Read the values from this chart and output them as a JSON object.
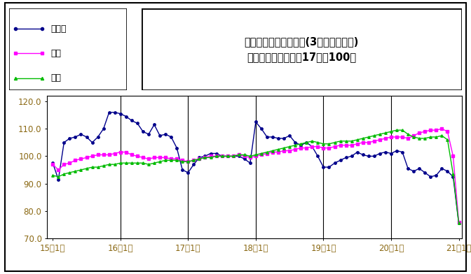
{
  "title_line1": "鉱工業生産指数の推移(3ヶ月移動平均)",
  "title_line2": "（季節調整済、平成17年＝100）",
  "legend_labels": [
    "鳥取県",
    "中国",
    "全国"
  ],
  "line_colors": [
    "#00008B",
    "#FF00FF",
    "#00BB00"
  ],
  "line_markers": [
    "o",
    "s",
    "^"
  ],
  "x_tick_labels": [
    "15年1月",
    "16年1月",
    "17年1月",
    "18年1月",
    "19年1月",
    "20年1月",
    "21年1月"
  ],
  "x_tick_positions": [
    0,
    12,
    24,
    36,
    48,
    60,
    72
  ],
  "vline_positions": [
    12,
    24,
    36,
    48,
    60
  ],
  "ylim": [
    70.0,
    122.0
  ],
  "yticks": [
    70.0,
    80.0,
    90.0,
    100.0,
    110.0,
    120.0
  ],
  "y_tick_labels": [
    "70.0",
    "80.0",
    "90.0",
    "100.0",
    "110.0",
    "120.0"
  ],
  "tottori": [
    97.5,
    91.5,
    105.0,
    106.5,
    107.0,
    108.0,
    107.0,
    105.0,
    107.0,
    110.0,
    116.0,
    116.0,
    115.5,
    114.5,
    113.0,
    112.0,
    109.0,
    108.0,
    111.5,
    107.5,
    108.0,
    107.0,
    103.0,
    95.0,
    94.0,
    97.0,
    99.5,
    100.0,
    101.0,
    101.0,
    100.0,
    100.0,
    100.0,
    100.0,
    99.0,
    97.5,
    112.5,
    110.0,
    107.0,
    107.0,
    106.5,
    106.5,
    107.5,
    105.0,
    104.0,
    105.0,
    103.5,
    100.0,
    96.0,
    96.0,
    97.5,
    98.5,
    99.5,
    100.0,
    101.5,
    100.5,
    100.0,
    100.0,
    101.0,
    101.5,
    101.0,
    102.0,
    101.5,
    95.5,
    94.5,
    95.5,
    94.0,
    92.5,
    93.0,
    95.5,
    94.5,
    92.5,
    75.5
  ],
  "chugoku": [
    97.0,
    95.0,
    97.0,
    97.5,
    98.5,
    99.0,
    99.5,
    100.0,
    100.5,
    100.5,
    100.5,
    101.0,
    101.5,
    101.5,
    100.5,
    100.0,
    99.5,
    99.0,
    99.5,
    99.5,
    99.5,
    99.0,
    99.0,
    98.5,
    98.0,
    98.5,
    99.0,
    99.5,
    100.0,
    100.0,
    100.0,
    100.0,
    100.0,
    100.5,
    100.0,
    99.5,
    100.0,
    100.5,
    101.0,
    101.5,
    101.5,
    102.0,
    102.0,
    102.5,
    103.0,
    103.0,
    103.5,
    103.5,
    103.0,
    103.0,
    103.5,
    104.0,
    104.0,
    104.0,
    104.5,
    105.0,
    105.0,
    105.5,
    106.0,
    106.5,
    107.0,
    107.0,
    107.0,
    106.5,
    107.5,
    108.5,
    109.0,
    109.5,
    109.5,
    110.0,
    109.0,
    100.0,
    76.0
  ],
  "zenkoku": [
    93.0,
    92.5,
    93.5,
    94.0,
    94.5,
    95.0,
    95.5,
    96.0,
    96.0,
    96.5,
    97.0,
    97.0,
    97.5,
    97.5,
    97.5,
    97.5,
    97.5,
    97.0,
    97.5,
    98.0,
    98.5,
    98.5,
    98.5,
    98.0,
    98.0,
    98.5,
    99.0,
    99.5,
    99.5,
    100.0,
    100.0,
    100.0,
    100.0,
    100.5,
    100.5,
    100.0,
    100.5,
    101.0,
    101.5,
    102.0,
    102.5,
    103.0,
    103.5,
    104.0,
    104.5,
    105.0,
    105.5,
    105.0,
    104.5,
    104.5,
    105.0,
    105.5,
    105.5,
    105.5,
    106.0,
    106.5,
    107.0,
    107.5,
    108.0,
    108.5,
    109.0,
    109.5,
    109.5,
    108.0,
    107.0,
    106.5,
    106.5,
    107.0,
    107.0,
    107.5,
    106.0,
    93.5,
    75.5
  ],
  "tick_label_color": "#8B6914",
  "tick_fontsize": 8.5,
  "legend_fontsize": 9,
  "title_fontsize": 10.5,
  "marker_size": 2.5,
  "line_width": 1.0
}
